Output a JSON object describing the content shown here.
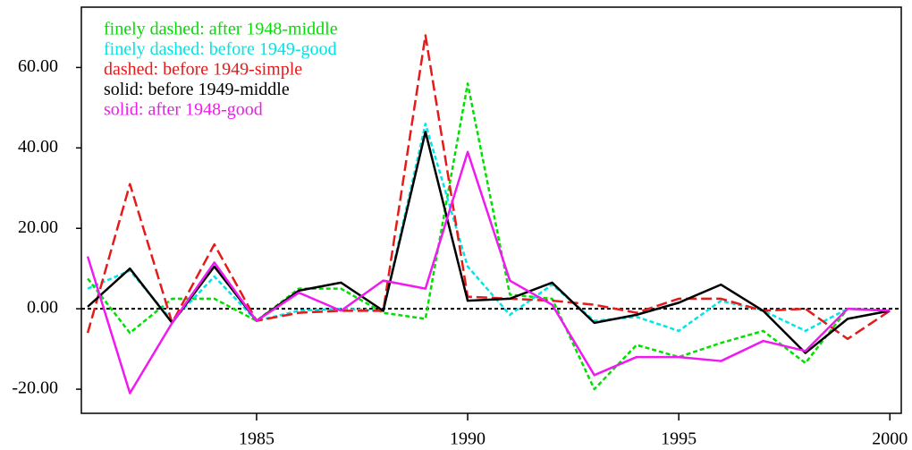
{
  "chart_data": {
    "type": "line",
    "x": [
      1981,
      1982,
      1983,
      1984,
      1985,
      1986,
      1987,
      1988,
      1989,
      1990,
      1991,
      1992,
      1993,
      1994,
      1995,
      1996,
      1997,
      1998,
      1999,
      2000
    ],
    "series": [
      {
        "name": "finely dashed: after 1948-middle",
        "color": "#00e000",
        "linestyle": "dotted",
        "values": [
          7.5,
          -6,
          2.5,
          2.5,
          -3,
          5,
          5,
          -1,
          -2.5,
          56,
          3.5,
          2.5,
          -20,
          -9,
          -12,
          -8.5,
          -5.5,
          -13.5,
          0,
          -0.5
        ]
      },
      {
        "name": "finely dashed: before 1949-good",
        "color": "#00e5e5",
        "linestyle": "dotted",
        "values": [
          5,
          9.5,
          -3,
          8,
          -3,
          -0.5,
          0,
          -0.5,
          46,
          10.5,
          -1.5,
          6,
          -3,
          -2,
          -5.5,
          2,
          -0.5,
          -5.5,
          0,
          -0.5
        ]
      },
      {
        "name": "dashed: before 1949-simple",
        "color": "#e51a1a",
        "linestyle": "dashed",
        "values": [
          -6,
          31,
          -3.5,
          16,
          -3,
          -1,
          -0.5,
          -0.5,
          68,
          3,
          2.5,
          2,
          1,
          -1,
          2.5,
          2.5,
          -0.5,
          0,
          -7.5,
          -0.5
        ]
      },
      {
        "name": "solid: before 1949-middle",
        "color": "#000000",
        "linestyle": "solid",
        "values": [
          0.5,
          10,
          -3.5,
          10.5,
          -3,
          4.5,
          6.5,
          -0.5,
          44,
          2,
          2.5,
          6.5,
          -3.5,
          -1.5,
          1.5,
          6,
          -0.5,
          -11,
          -2.5,
          -0.5
        ]
      },
      {
        "name": "solid: after 1948-good",
        "color": "#f01af0",
        "linestyle": "solid",
        "values": [
          13,
          -21,
          -3.5,
          11.5,
          -3,
          4,
          -0.5,
          7,
          5,
          39,
          7,
          1,
          -16.5,
          -12,
          -12,
          -13,
          -8,
          -10.5,
          0,
          -0.5
        ]
      }
    ],
    "xlim": [
      1980.85,
      2000.27
    ],
    "ylim": [
      -26,
      75
    ],
    "xticks": [
      1985,
      1990,
      1995,
      2000
    ],
    "yticks": [
      {
        "value": -20,
        "label": "-20.00"
      },
      {
        "value": 0,
        "label": "0.00"
      },
      {
        "value": 20,
        "label": "20.00"
      },
      {
        "value": 40,
        "label": "40.00"
      },
      {
        "value": 60,
        "label": "60.00"
      }
    ],
    "reference_line": 0,
    "legend": "upper left"
  }
}
